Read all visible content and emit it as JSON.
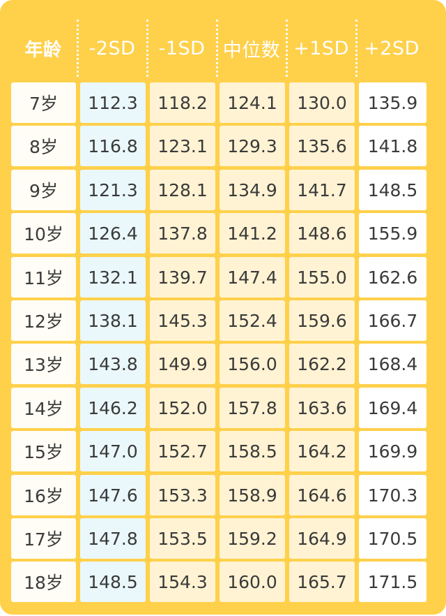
{
  "table": {
    "headers": [
      "年龄",
      "-2SD",
      "-1SD",
      "中位数",
      "+1SD",
      "+2SD"
    ],
    "rows": [
      [
        "7岁",
        "112.3",
        "118.2",
        "124.1",
        "130.0",
        "135.9"
      ],
      [
        "8岁",
        "116.8",
        "123.1",
        "129.3",
        "135.6",
        "141.8"
      ],
      [
        "9岁",
        "121.3",
        "128.1",
        "134.9",
        "141.7",
        "148.5"
      ],
      [
        "10岁",
        "126.4",
        "137.8",
        "141.2",
        "148.6",
        "155.9"
      ],
      [
        "11岁",
        "132.1",
        "139.7",
        "147.4",
        "155.0",
        "162.6"
      ],
      [
        "12岁",
        "138.1",
        "145.3",
        "152.4",
        "159.6",
        "166.7"
      ],
      [
        "13岁",
        "143.8",
        "149.9",
        "156.0",
        "162.2",
        "168.4"
      ],
      [
        "14岁",
        "146.2",
        "152.0",
        "157.8",
        "163.6",
        "169.4"
      ],
      [
        "15岁",
        "147.0",
        "152.7",
        "158.5",
        "164.2",
        "169.9"
      ],
      [
        "16岁",
        "147.6",
        "153.3",
        "158.9",
        "164.6",
        "170.3"
      ],
      [
        "17岁",
        "147.8",
        "153.5",
        "159.2",
        "164.9",
        "170.5"
      ],
      [
        "18岁",
        "148.5",
        "154.3",
        "160.0",
        "165.7",
        "171.5"
      ]
    ]
  },
  "colors": {
    "frame": "#ffd04a",
    "age_cell": "#fffdf5",
    "minus_2sd_cell": "#eaf8fb",
    "middle_cells": "#fff3d3",
    "plus_2sd_cell": "#ffffff",
    "header_text": "#ffffff",
    "cell_text": "#3a3a3a"
  }
}
